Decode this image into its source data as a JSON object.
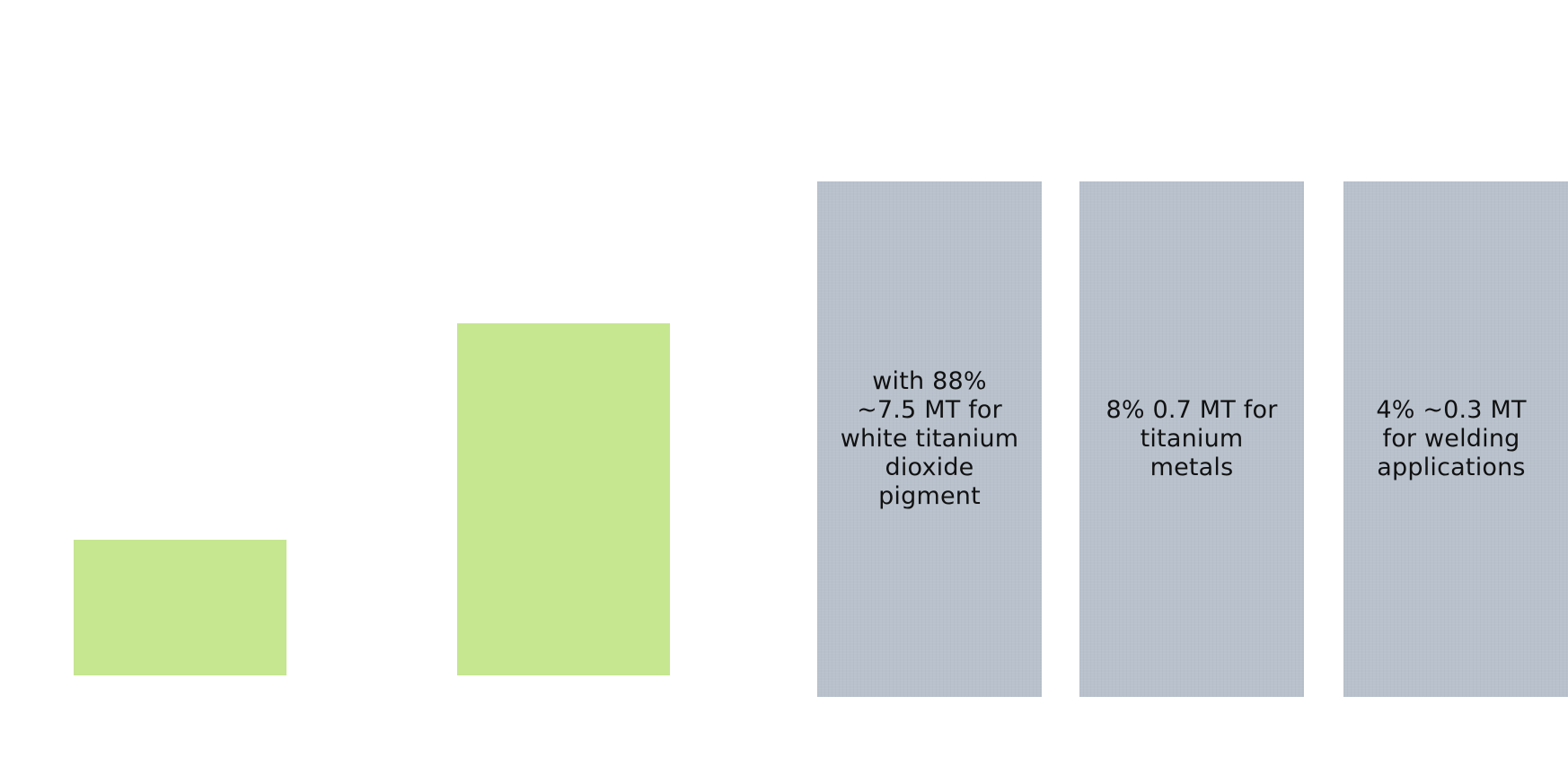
{
  "colors": {
    "background": "#ffffff",
    "bar_fill": "#c6e690",
    "panel_fill": "#b8c1cc",
    "text": "#111111"
  },
  "panels": [
    {
      "text": "with 88% ~7.5 MT for white titanium dioxide pigment"
    },
    {
      "text": "8% 0.7 MT for titanium metals"
    },
    {
      "text": "4% ~0.3 MT for welding applications"
    }
  ]
}
